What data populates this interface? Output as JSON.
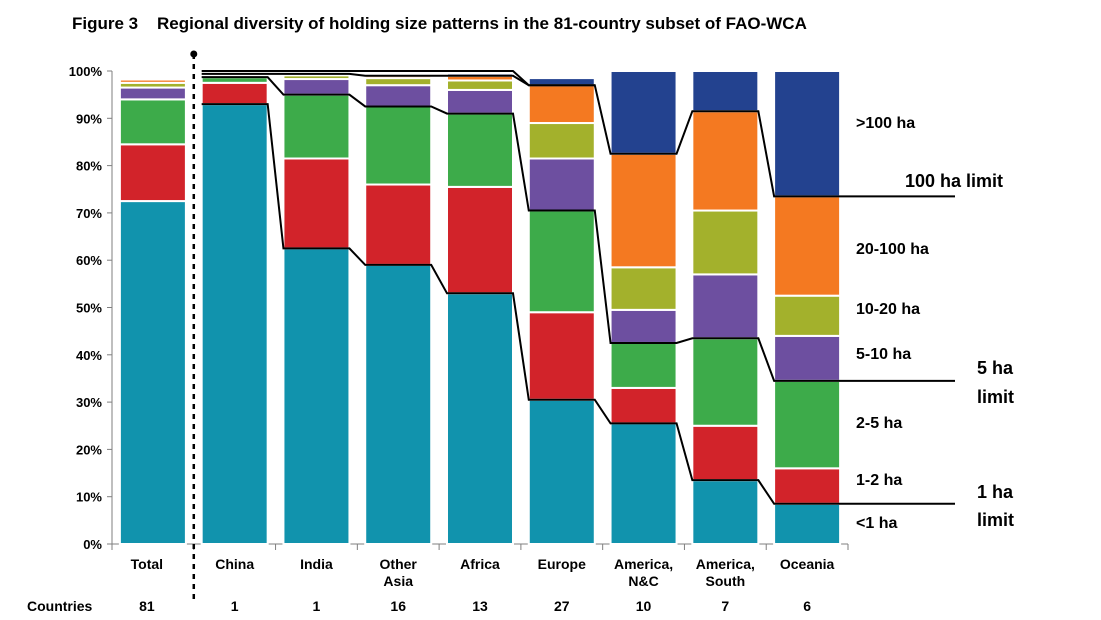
{
  "chart_data": {
    "type": "bar",
    "stacked": true,
    "title": "Figure 3    Regional diversity of holding size patterns in the 81-country subset of FAO-WCA",
    "ylim": [
      0,
      100
    ],
    "yticks": [
      "0%",
      "10%",
      "20%",
      "30%",
      "40%",
      "50%",
      "60%",
      "70%",
      "80%",
      "90%",
      "100%"
    ],
    "categories": [
      [
        "Total"
      ],
      [
        "China"
      ],
      [
        "India"
      ],
      [
        "Other",
        "Asia"
      ],
      [
        "Africa"
      ],
      [
        "Europe"
      ],
      [
        "America,",
        "N&C"
      ],
      [
        "America,",
        "South"
      ],
      [
        "Oceania"
      ]
    ],
    "row_label": "Countries",
    "countries": [
      "81",
      "1",
      "1",
      "16",
      "13",
      "27",
      "10",
      "7",
      "6"
    ],
    "series": [
      {
        "name": "<1 ha",
        "color": "#1193ad",
        "values": [
          72.5,
          93,
          62.5,
          59,
          53,
          30.5,
          25.5,
          13.5,
          8.5
        ]
      },
      {
        "name": "1-2 ha",
        "color": "#d2232a",
        "values": [
          12,
          4.5,
          19,
          17,
          22.5,
          18.5,
          7.5,
          11.5,
          7.5
        ]
      },
      {
        "name": "2-5 ha",
        "color": "#3dab4a",
        "values": [
          9.5,
          1.2,
          13.5,
          16.5,
          15.5,
          21.5,
          9.5,
          18.5,
          18.5
        ]
      },
      {
        "name": "5-10 ha",
        "color": "#6d4fa0",
        "values": [
          2.5,
          0.3,
          3.3,
          4.5,
          5,
          11,
          7,
          13.5,
          9.5
        ]
      },
      {
        "name": "10-20 ha",
        "color": "#a3b12c",
        "values": [
          1,
          0.3,
          0.8,
          1.5,
          2,
          7.5,
          9,
          13.5,
          8.5
        ]
      },
      {
        "name": "20-100 ha",
        "color": "#f47921",
        "values": [
          0.7,
          0.1,
          0.3,
          0.5,
          1,
          8,
          24,
          21,
          21
        ]
      },
      {
        "name": ">100 ha",
        "color": "#23428f",
        "values": [
          0.3,
          0.1,
          0.1,
          0.2,
          0.5,
          1.5,
          17.5,
          8.5,
          26.5
        ]
      }
    ],
    "limits": [
      "1 ha",
      "5 ha",
      "100 ha"
    ],
    "limit_labels": {
      "hundred": "100 ha limit",
      "five": [
        "5 ha",
        "limit"
      ],
      "one": [
        "1 ha",
        "limit"
      ]
    },
    "separator_after": "Total",
    "legend": "right"
  }
}
